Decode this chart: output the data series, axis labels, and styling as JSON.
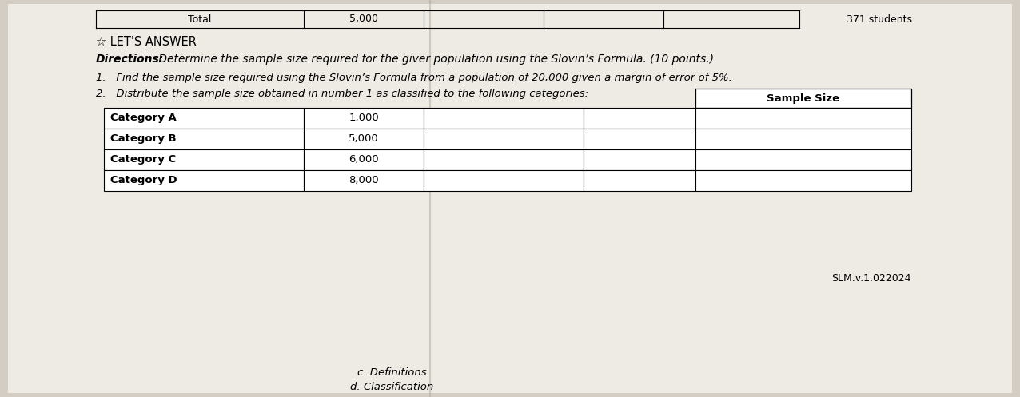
{
  "bg_color": "#d4cdc4",
  "paper_color": "#eeeae4",
  "top_table": {
    "col1": "Total",
    "col2": "5,000",
    "col3": "371 students"
  },
  "section_title": "☆ LET'S ANSWER",
  "directions_bold": "Directions:",
  "directions_text": " Determine the sample size required for the giver population using the Slovin’s Formula. (10 points.)",
  "item1": "1.   Find the sample size required using the Slovin’s Formula from a population of 20,000 given a margin of error of 5%.",
  "item2": "2.   Distribute the sample size obtained in number 1 as classified to the following categories:",
  "table_header": "Sample Size",
  "categories": [
    "Category A",
    "Category B",
    "Category C",
    "Category D"
  ],
  "values": [
    "1,000",
    "5,000",
    "6,000",
    "8,000"
  ],
  "footer": "SLM.v.1.022024",
  "bottom_c": "c. Definitions",
  "bottom_d": "d. Classification"
}
